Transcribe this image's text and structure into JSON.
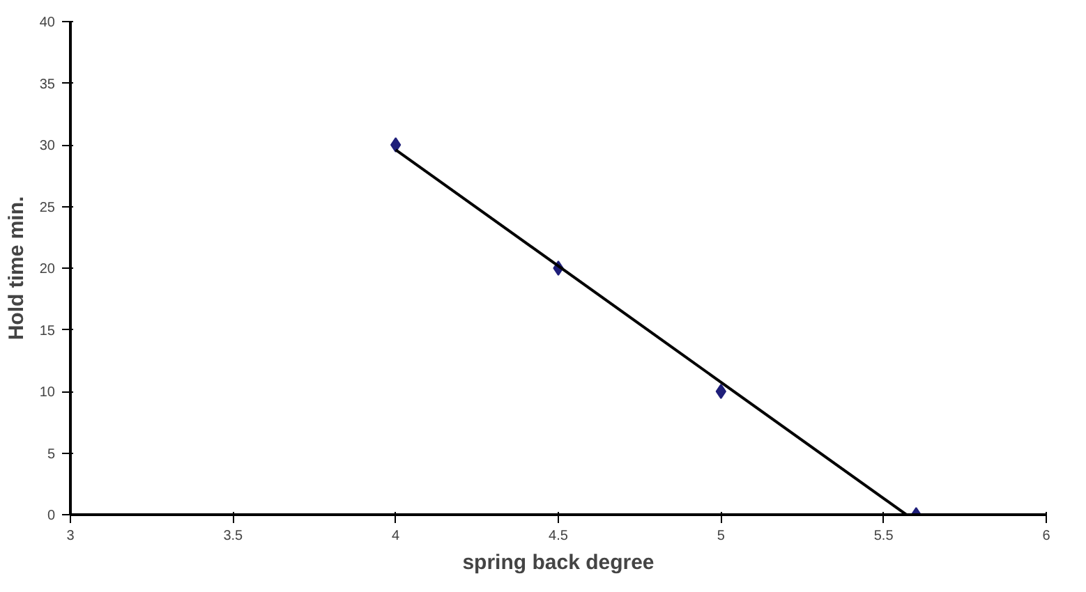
{
  "chart_data": {
    "type": "scatter",
    "xlabel": "spring back degree",
    "ylabel": "Hold time min.",
    "xlim": [
      3,
      6
    ],
    "xticks": [
      3,
      3.5,
      4,
      4.5,
      5,
      5.5,
      6
    ],
    "ylim": [
      0,
      40
    ],
    "yticks": [
      0,
      5,
      10,
      15,
      20,
      25,
      30,
      35,
      40
    ],
    "grid": false,
    "marker": "diamond",
    "series": [
      {
        "color": "#1f1f7a",
        "x": [
          4,
          4.5,
          5,
          5.6
        ],
        "values": [
          30,
          20,
          10,
          0
        ]
      },
      {
        "type": "line",
        "color": "#000000",
        "x": [
          4,
          5.57
        ],
        "values": [
          29.6,
          0
        ],
        "marker": "none",
        "line_style": "solid"
      }
    ]
  }
}
